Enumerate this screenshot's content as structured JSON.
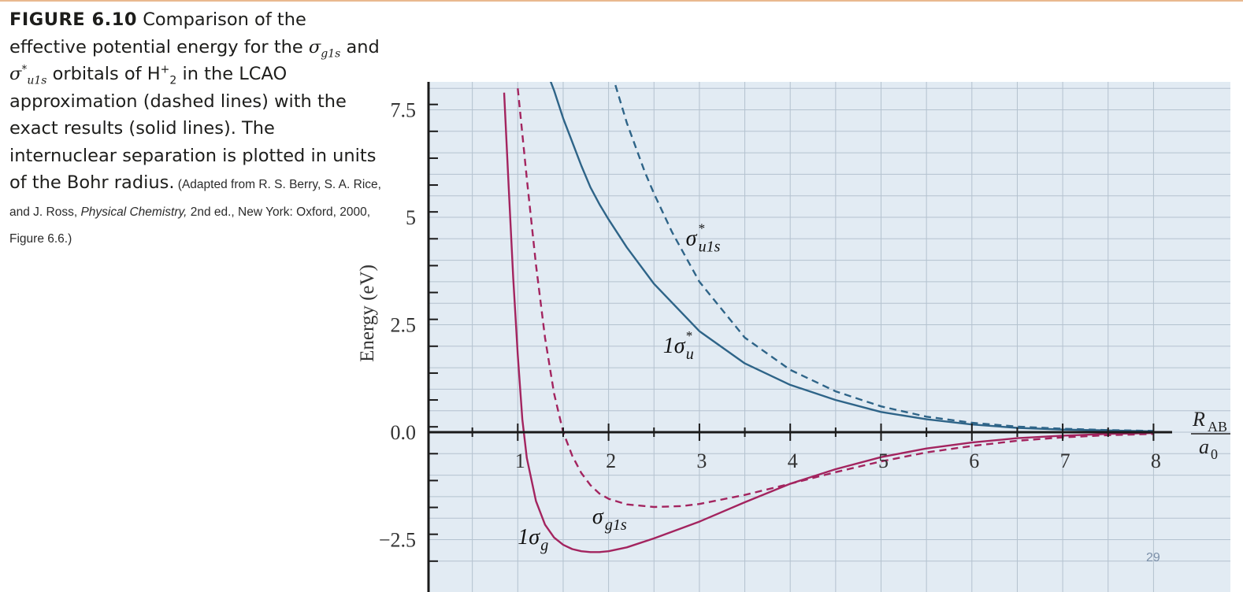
{
  "caption": {
    "figure_label": "FIGURE 6.10",
    "part1": "Comparison of the effective potential energy for the ",
    "sym_sigma": "σ",
    "sub_g1s": "g1s",
    "part2": " and ",
    "sup_star": "*",
    "sub_u1s": "u1s",
    "part3": " orbitals of H",
    "sup_plus": "+",
    "sub_2": "2",
    "part4": " in the LCAO approximation (dashed lines) with the exact results (solid lines). The internuclear separation is plotted in units of the Bohr radius.",
    "credit_a": " (Adapted from R. S. Berry, S. A. Rice, and J. Ross, ",
    "credit_italic": "Physical Chemistry,",
    "credit_b": " 2nd ed., New York: Oxford, 2000, Figure 6.6.)"
  },
  "page_number": "29",
  "chart_data": {
    "type": "line",
    "ylabel": "Energy (eV)",
    "xlabel_numerator": "R",
    "xlabel_subscript": "AB",
    "xlabel_denominator": "a",
    "xlabel_denominator_subscript": "0",
    "xlim": [
      0,
      8.3
    ],
    "ylim": [
      -3.2,
      8.0
    ],
    "x_ticks": [
      1,
      2,
      3,
      4,
      5,
      6,
      7,
      8
    ],
    "x_tick_labels": [
      "1",
      "2",
      "3",
      "4",
      "5",
      "6",
      "7",
      "8"
    ],
    "y_ticks": [
      -2.5,
      0.0,
      2.5,
      5,
      7.5
    ],
    "y_tick_labels": [
      "−2.5",
      "0.0",
      "2.5",
      "5",
      "7.5"
    ],
    "grid": true,
    "colors": {
      "sigma_g": "#a3245f",
      "sigma_u": "#2e6488",
      "panel": "#e2ebf3",
      "grid": "#b4c2cf",
      "axis": "#1a1a1a"
    },
    "series": [
      {
        "name": "1σg",
        "style": "solid",
        "color": "#a3245f",
        "x": [
          0.85,
          0.9,
          0.95,
          1.0,
          1.05,
          1.1,
          1.2,
          1.3,
          1.4,
          1.5,
          1.6,
          1.7,
          1.8,
          1.9,
          2.0,
          2.2,
          2.5,
          3.0,
          3.5,
          4.0,
          4.5,
          5.0,
          5.5,
          6.0,
          6.5,
          7.0,
          7.5,
          8.0
        ],
        "y": [
          7.9,
          5.7,
          3.6,
          1.8,
          0.3,
          -0.6,
          -1.6,
          -2.15,
          -2.45,
          -2.62,
          -2.72,
          -2.77,
          -2.79,
          -2.79,
          -2.77,
          -2.68,
          -2.47,
          -2.08,
          -1.63,
          -1.2,
          -0.86,
          -0.58,
          -0.38,
          -0.24,
          -0.14,
          -0.08,
          -0.04,
          -0.02
        ]
      },
      {
        "name": "σg1s",
        "style": "dashed",
        "color": "#a3245f",
        "x": [
          1.0,
          1.1,
          1.2,
          1.3,
          1.4,
          1.5,
          1.6,
          1.7,
          1.8,
          1.9,
          2.0,
          2.2,
          2.5,
          2.8,
          3.0,
          3.5,
          4.0,
          4.5,
          5.0,
          5.5,
          6.0,
          6.5,
          7.0,
          7.5,
          8.0
        ],
        "y": [
          8.0,
          5.9,
          3.9,
          2.2,
          0.9,
          0.0,
          -0.55,
          -0.95,
          -1.23,
          -1.43,
          -1.55,
          -1.68,
          -1.74,
          -1.72,
          -1.67,
          -1.46,
          -1.2,
          -0.93,
          -0.68,
          -0.47,
          -0.32,
          -0.2,
          -0.12,
          -0.07,
          -0.04
        ]
      },
      {
        "name": "1σu*",
        "style": "solid",
        "color": "#2e6488",
        "x": [
          1.3,
          1.4,
          1.5,
          1.6,
          1.7,
          1.8,
          1.9,
          2.0,
          2.2,
          2.5,
          3.0,
          3.5,
          4.0,
          4.5,
          5.0,
          5.5,
          6.0,
          6.5,
          7.0,
          7.5,
          8.0
        ],
        "y": [
          8.5,
          7.95,
          7.3,
          6.75,
          6.2,
          5.7,
          5.3,
          4.95,
          4.3,
          3.45,
          2.35,
          1.6,
          1.1,
          0.75,
          0.47,
          0.3,
          0.18,
          0.1,
          0.06,
          0.04,
          0.02
        ]
      },
      {
        "name": "σu1s*",
        "style": "dashed",
        "color": "#2e6488",
        "x": [
          2.0,
          2.2,
          2.4,
          2.5,
          2.7,
          3.0,
          3.5,
          4.0,
          4.5,
          5.0,
          5.5,
          6.0,
          6.5,
          7.0,
          7.5,
          8.0
        ],
        "y": [
          8.6,
          7.2,
          6.05,
          5.55,
          4.65,
          3.5,
          2.2,
          1.45,
          0.95,
          0.6,
          0.36,
          0.22,
          0.13,
          0.08,
          0.05,
          0.03
        ]
      }
    ],
    "annotations": [
      {
        "base": "σ",
        "sup": "*",
        "sub": "u1s",
        "x": 2.85,
        "y": 4.35
      },
      {
        "base": "1σ",
        "sup": "*",
        "sub": "u",
        "x": 2.6,
        "y": 1.85
      },
      {
        "base": "σ",
        "sup": "",
        "sub": "g1s",
        "x": 1.82,
        "y": -2.12
      },
      {
        "base": "1σ",
        "sup": "",
        "sub": "g",
        "x": 1.0,
        "y": -2.6
      }
    ]
  }
}
